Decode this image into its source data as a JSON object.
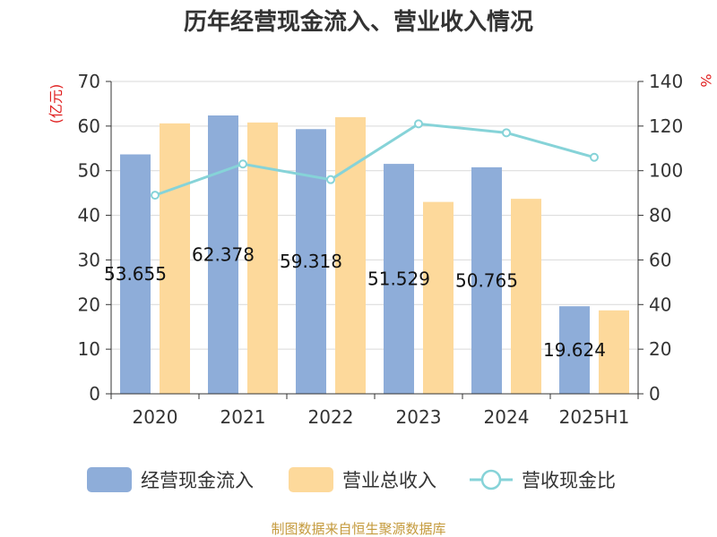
{
  "chart_data": {
    "type": "bar",
    "title": "历年经营现金流入、营业收入情况",
    "categories": [
      "2020",
      "2021",
      "2022",
      "2023",
      "2024",
      "2025H1"
    ],
    "y_left": {
      "unit_label": "(亿元)",
      "range": [
        0,
        70
      ],
      "ticks": [
        "0",
        "10",
        "20",
        "30",
        "40",
        "50",
        "60",
        "70"
      ]
    },
    "y_right": {
      "unit_label": "%",
      "range": [
        0,
        140
      ],
      "ticks": [
        "0",
        "20",
        "40",
        "60",
        "80",
        "100",
        "120",
        "140"
      ]
    },
    "series": [
      {
        "name": "经营现金流入",
        "kind": "bar",
        "axis": "left",
        "color": "#8eadd9",
        "values": [
          53.655,
          62.378,
          59.318,
          51.529,
          50.765,
          19.624
        ],
        "labels": [
          "53.655",
          "62.378",
          "59.318",
          "51.529",
          "50.765",
          "19.624"
        ]
      },
      {
        "name": "营业总收入",
        "kind": "bar",
        "axis": "left",
        "color": "#fdd99b",
        "values": [
          60.6,
          60.8,
          62.0,
          43.0,
          43.7,
          18.7
        ]
      },
      {
        "name": "营收现金比",
        "kind": "line",
        "axis": "right",
        "color": "#86d3d8",
        "values": [
          89,
          103,
          96,
          121,
          117,
          106
        ]
      }
    ],
    "legend_position": "bottom",
    "grid": true,
    "source": "制图数据来自恒生聚源数据库",
    "colors": {
      "axis": "#333333",
      "grid": "#d9d9d9",
      "unit_label": "#e02020",
      "source": "#c49a3c"
    }
  }
}
